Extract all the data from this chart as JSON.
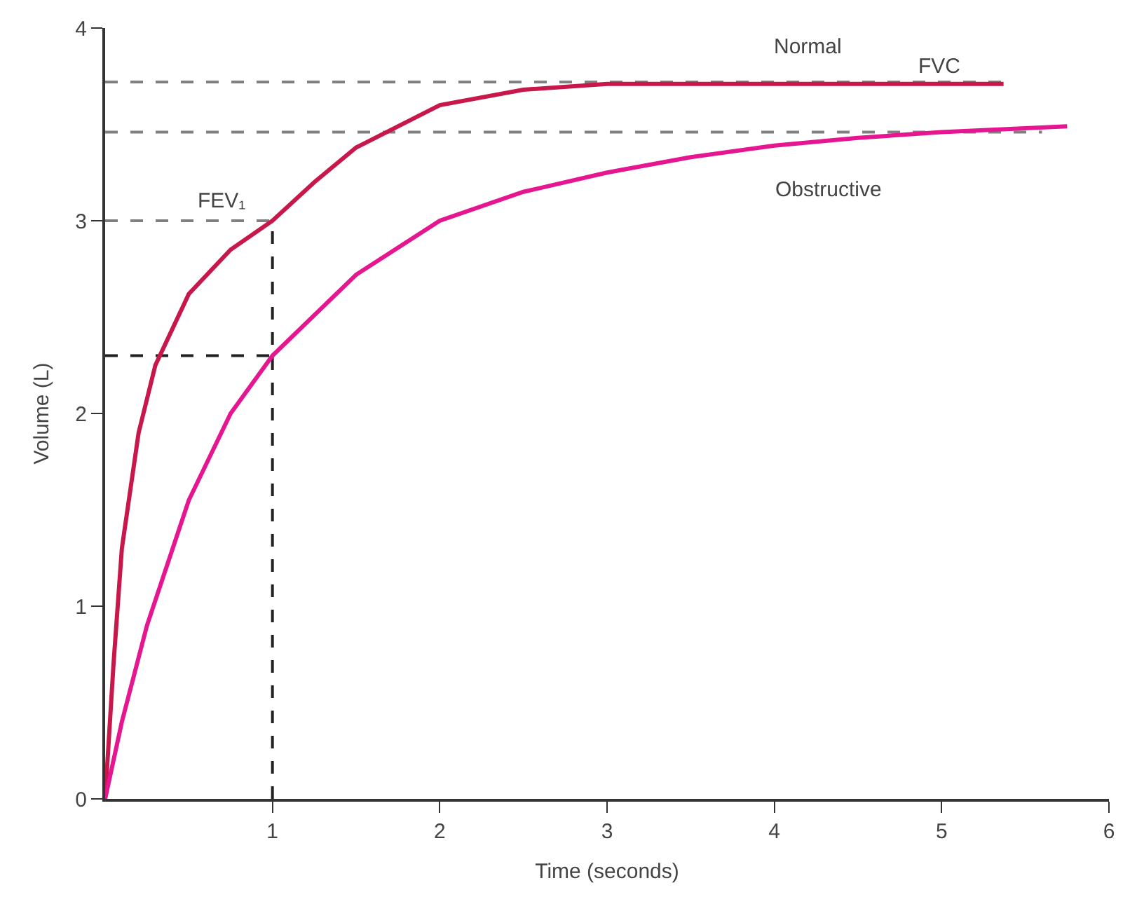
{
  "chart_data": {
    "type": "line",
    "xlabel": "Time (seconds)",
    "ylabel": "Volume (L)",
    "xlim": [
      0,
      6
    ],
    "ylim": [
      0,
      4
    ],
    "xticks": [
      1,
      2,
      3,
      4,
      5,
      6
    ],
    "yticks": [
      0,
      1,
      2,
      3,
      4
    ],
    "legend": false,
    "marker": "none",
    "series": [
      {
        "color": "#808080",
        "line_style": "dashed",
        "x": [
          0,
          5.36
        ],
        "values": [
          3.72,
          3.72
        ]
      },
      {
        "color": "#808080",
        "line_style": "dashed",
        "x": [
          0,
          5.6
        ],
        "values": [
          3.46,
          3.46
        ]
      },
      {
        "color": "#808080",
        "line_style": "dashed",
        "x": [
          0,
          1
        ],
        "values": [
          3.0,
          3.0
        ]
      },
      {
        "color": "#222222",
        "line_style": "dashed",
        "x": [
          0,
          1
        ],
        "values": [
          2.3,
          2.3
        ]
      },
      {
        "color": "#222222",
        "line_style": "dashed",
        "x": [
          1,
          1
        ],
        "values": [
          0,
          3.0
        ]
      },
      {
        "name": "Normal",
        "color": "#c8174a",
        "line_style": "solid",
        "x": [
          0,
          0.05,
          0.1,
          0.2,
          0.3,
          0.5,
          0.75,
          1,
          1.25,
          1.5,
          2,
          2.5,
          3,
          4,
          5.37
        ],
        "values": [
          0,
          0.7,
          1.3,
          1.9,
          2.25,
          2.62,
          2.85,
          3.0,
          3.2,
          3.38,
          3.6,
          3.68,
          3.71,
          3.71,
          3.71
        ]
      },
      {
        "name": "Obstructive",
        "color": "#e5168f",
        "line_style": "solid",
        "x": [
          0,
          0.1,
          0.25,
          0.5,
          0.75,
          1,
          1.5,
          2,
          2.5,
          3,
          3.5,
          4,
          4.5,
          5,
          5.75
        ],
        "values": [
          0,
          0.4,
          0.9,
          1.55,
          2.0,
          2.3,
          2.72,
          3.0,
          3.15,
          3.25,
          3.33,
          3.39,
          3.43,
          3.46,
          3.49
        ]
      }
    ],
    "annotations": [
      "FVC",
      "FEV₁"
    ]
  }
}
